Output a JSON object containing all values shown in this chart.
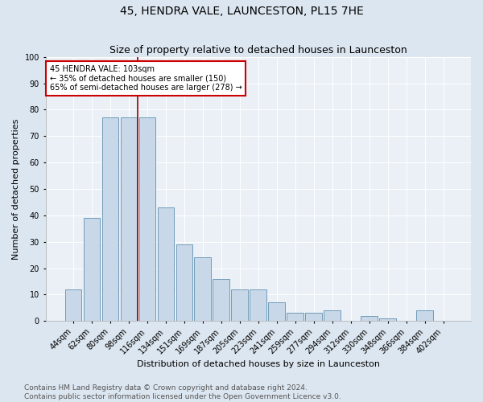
{
  "title": "45, HENDRA VALE, LAUNCESTON, PL15 7HE",
  "subtitle": "Size of property relative to detached houses in Launceston",
  "xlabel": "Distribution of detached houses by size in Launceston",
  "ylabel": "Number of detached properties",
  "categories": [
    "44sqm",
    "62sqm",
    "80sqm",
    "98sqm",
    "116sqm",
    "134sqm",
    "151sqm",
    "169sqm",
    "187sqm",
    "205sqm",
    "223sqm",
    "241sqm",
    "259sqm",
    "277sqm",
    "294sqm",
    "312sqm",
    "330sqm",
    "348sqm",
    "366sqm",
    "384sqm",
    "402sqm"
  ],
  "values": [
    12,
    39,
    77,
    77,
    77,
    43,
    29,
    24,
    16,
    12,
    12,
    7,
    3,
    3,
    4,
    0,
    2,
    1,
    0,
    4,
    0
  ],
  "bar_color": "#c8d8e8",
  "bar_edge_color": "#6090b0",
  "vline_x_idx": 3.5,
  "vline_color": "#990000",
  "annotation_text": "45 HENDRA VALE: 103sqm\n← 35% of detached houses are smaller (150)\n65% of semi-detached houses are larger (278) →",
  "annotation_box_color": "#cc0000",
  "ylim": [
    0,
    100
  ],
  "yticks": [
    0,
    10,
    20,
    30,
    40,
    50,
    60,
    70,
    80,
    90,
    100
  ],
  "bg_color": "#dce6f0",
  "plot_bg_color": "#eaf0f6",
  "footer": "Contains HM Land Registry data © Crown copyright and database right 2024.\nContains public sector information licensed under the Open Government Licence v3.0.",
  "title_fontsize": 10,
  "subtitle_fontsize": 9,
  "xlabel_fontsize": 8,
  "ylabel_fontsize": 8,
  "footer_fontsize": 6.5,
  "tick_fontsize": 7,
  "annot_fontsize": 7
}
